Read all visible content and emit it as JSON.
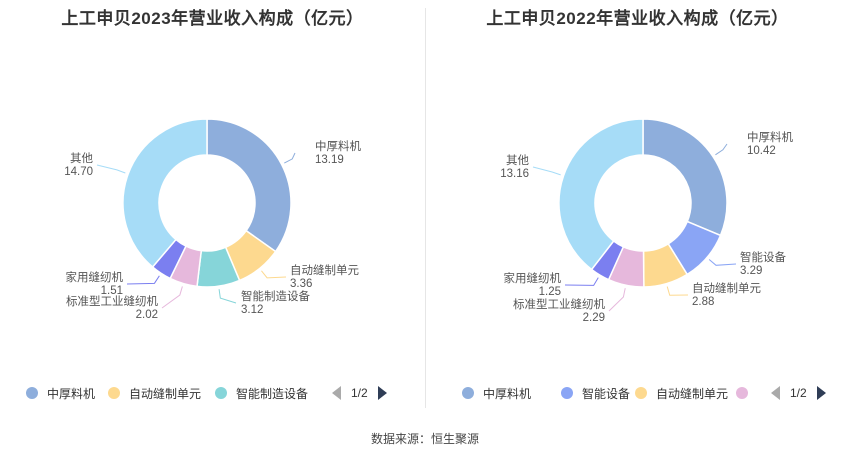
{
  "source": "数据来源：恒生聚源",
  "chart_data": [
    {
      "type": "pie",
      "title": "上工申贝2023年营业收入构成（亿元）",
      "slices": [
        {
          "name": "中厚料机",
          "value": 13.19,
          "value_label": "13.19",
          "color": "#8eaedc"
        },
        {
          "name": "自动缝制单元",
          "value": 3.36,
          "value_label": "3.36",
          "color": "#fdd98f"
        },
        {
          "name": "智能制造设备",
          "value": 3.12,
          "value_label": "3.12",
          "color": "#86d5d9"
        },
        {
          "name": "标准型工业缝纫机",
          "value": 2.02,
          "value_label": "2.02",
          "color": "#e6b8dc"
        },
        {
          "name": "家用缝纫机",
          "value": 1.51,
          "value_label": "1.51",
          "color": "#7b7ff0"
        },
        {
          "name": "其他",
          "value": 14.7,
          "value_label": "14.70",
          "color": "#a6dcf7"
        }
      ],
      "legend_visible": [
        "中厚料机",
        "自动缝制单元",
        "智能制造设备"
      ],
      "page": "1/2"
    },
    {
      "type": "pie",
      "title": "上工申贝2022年营业收入构成（亿元）",
      "slices": [
        {
          "name": "中厚料机",
          "value": 10.42,
          "value_label": "10.42",
          "color": "#8eaedc"
        },
        {
          "name": "智能设备",
          "value": 3.29,
          "value_label": "3.29",
          "color": "#8aa5f5"
        },
        {
          "name": "自动缝制单元",
          "value": 2.88,
          "value_label": "2.88",
          "color": "#fdd98f"
        },
        {
          "name": "标准型工业缝纫机",
          "value": 2.29,
          "value_label": "2.29",
          "color": "#e6b8dc"
        },
        {
          "name": "家用缝纫机",
          "value": 1.25,
          "value_label": "1.25",
          "color": "#7b7ff0"
        },
        {
          "name": "其他",
          "value": 13.16,
          "value_label": "13.16",
          "color": "#a6dcf7"
        }
      ],
      "legend_visible": [
        "中厚料机",
        "智能设备",
        "自动缝制单元",
        ""
      ],
      "page": "1/2"
    }
  ]
}
